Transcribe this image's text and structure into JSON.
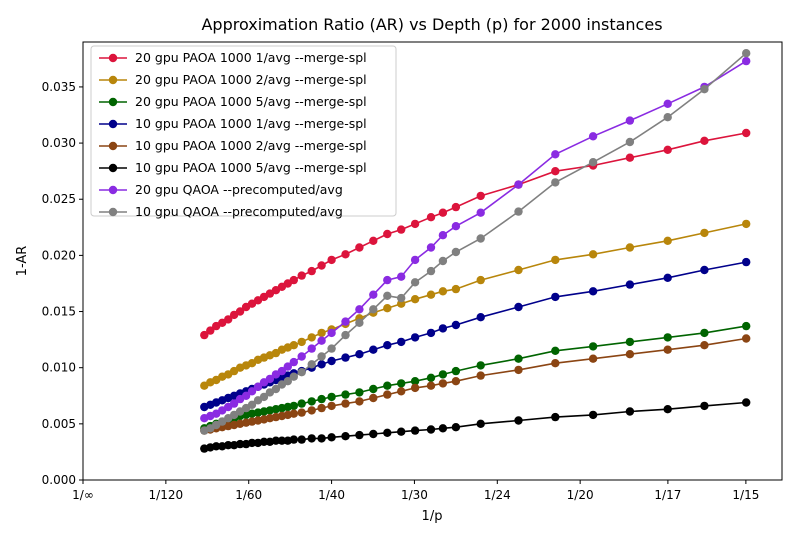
{
  "chart_data": {
    "type": "line",
    "title": "Approximation Ratio (AR) vs Depth (p) for 2000 instances",
    "xlabel": "1/p",
    "ylabel": "1-AR",
    "xlim": [
      0,
      0.0703
    ],
    "ylim": [
      0,
      0.039
    ],
    "x_ticks": [
      {
        "value": 0,
        "label": "1/∞"
      },
      {
        "value": 0.008333,
        "label": "1/120"
      },
      {
        "value": 0.016667,
        "label": "1/60"
      },
      {
        "value": 0.025,
        "label": "1/40"
      },
      {
        "value": 0.033333,
        "label": "1/30"
      },
      {
        "value": 0.041667,
        "label": "1/24"
      },
      {
        "value": 0.05,
        "label": "1/20"
      },
      {
        "value": 0.058824,
        "label": "1/17"
      },
      {
        "value": 0.066667,
        "label": "1/15"
      }
    ],
    "y_ticks": [
      {
        "value": 0.0,
        "label": "0.000"
      },
      {
        "value": 0.005,
        "label": "0.005"
      },
      {
        "value": 0.01,
        "label": "0.010"
      },
      {
        "value": 0.015,
        "label": "0.015"
      },
      {
        "value": 0.02,
        "label": "0.020"
      },
      {
        "value": 0.025,
        "label": "0.025"
      },
      {
        "value": 0.03,
        "label": "0.030"
      },
      {
        "value": 0.035,
        "label": "0.035"
      }
    ],
    "grid": false,
    "legend_position": "top-left",
    "x": [
      0.0122,
      0.0128,
      0.0134,
      0.014,
      0.0146,
      0.0152,
      0.0158,
      0.0164,
      0.017,
      0.0176,
      0.0182,
      0.0188,
      0.0194,
      0.02,
      0.0206,
      0.0212,
      0.022,
      0.023,
      0.024,
      0.025,
      0.0264,
      0.0278,
      0.0292,
      0.0306,
      0.032,
      0.0334,
      0.035,
      0.0362,
      0.0375,
      0.04,
      0.0438,
      0.0475,
      0.0513,
      0.055,
      0.0588,
      0.0625,
      0.0667
    ],
    "series": [
      {
        "name": "20 gpu PAOA 1000 1/avg --merge-spl",
        "color": "#dc143c",
        "values": [
          0.0129,
          0.0133,
          0.0137,
          0.014,
          0.0143,
          0.0147,
          0.015,
          0.0154,
          0.0157,
          0.016,
          0.0163,
          0.0166,
          0.0169,
          0.0172,
          0.0175,
          0.0178,
          0.0182,
          0.0186,
          0.0191,
          0.0196,
          0.0201,
          0.0207,
          0.0213,
          0.0219,
          0.0223,
          0.0228,
          0.0234,
          0.0238,
          0.0243,
          0.0253,
          0.0263,
          0.0275,
          0.028,
          0.0287,
          0.0294,
          0.0302,
          0.0309
        ]
      },
      {
        "name": "20 gpu PAOA 1000 2/avg --merge-spl",
        "color": "#b8860b",
        "values": [
          0.0084,
          0.0087,
          0.0089,
          0.0092,
          0.0094,
          0.0097,
          0.01,
          0.0102,
          0.0104,
          0.0107,
          0.0109,
          0.0111,
          0.0113,
          0.0116,
          0.0118,
          0.012,
          0.0123,
          0.0127,
          0.0131,
          0.0134,
          0.0139,
          0.0144,
          0.0149,
          0.0153,
          0.0157,
          0.0161,
          0.0165,
          0.0168,
          0.017,
          0.0178,
          0.0187,
          0.0196,
          0.0201,
          0.0207,
          0.0213,
          0.022,
          0.0228
        ]
      },
      {
        "name": "20 gpu PAOA 1000 5/avg --merge-spl",
        "color": "#006400",
        "values": [
          0.0046,
          0.0048,
          0.005,
          0.0052,
          0.0054,
          0.0055,
          0.0057,
          0.0058,
          0.0059,
          0.006,
          0.0061,
          0.0062,
          0.0063,
          0.0064,
          0.0065,
          0.0066,
          0.0068,
          0.007,
          0.0072,
          0.0074,
          0.0076,
          0.0078,
          0.0081,
          0.0084,
          0.0086,
          0.0088,
          0.0091,
          0.0094,
          0.0097,
          0.0102,
          0.0108,
          0.0115,
          0.0119,
          0.0123,
          0.0127,
          0.0131,
          0.0137
        ]
      },
      {
        "name": "10 gpu PAOA 1000 1/avg --merge-spl",
        "color": "#00008b",
        "values": [
          0.0065,
          0.0067,
          0.0069,
          0.0071,
          0.0073,
          0.0075,
          0.0077,
          0.0079,
          0.0081,
          0.0083,
          0.0085,
          0.0087,
          0.0089,
          0.0091,
          0.0093,
          0.0095,
          0.0097,
          0.01,
          0.0103,
          0.0106,
          0.0109,
          0.0112,
          0.0116,
          0.012,
          0.0123,
          0.0127,
          0.0131,
          0.0135,
          0.0138,
          0.0145,
          0.0154,
          0.0163,
          0.0168,
          0.0174,
          0.018,
          0.0187,
          0.0194
        ]
      },
      {
        "name": "10 gpu PAOA 1000 2/avg --merge-spl",
        "color": "#8b4513",
        "values": [
          0.0044,
          0.0045,
          0.0046,
          0.0047,
          0.0048,
          0.0049,
          0.005,
          0.0051,
          0.0052,
          0.0053,
          0.0054,
          0.0055,
          0.0056,
          0.0057,
          0.0058,
          0.0059,
          0.006,
          0.0062,
          0.0064,
          0.0066,
          0.0068,
          0.007,
          0.0073,
          0.0076,
          0.0079,
          0.0082,
          0.0084,
          0.0086,
          0.0088,
          0.0093,
          0.0098,
          0.0104,
          0.0108,
          0.0112,
          0.0116,
          0.012,
          0.0126
        ]
      },
      {
        "name": "10 gpu PAOA 1000 5/avg --merge-spl",
        "color": "#000000",
        "values": [
          0.0028,
          0.0029,
          0.003,
          0.003,
          0.0031,
          0.0031,
          0.0032,
          0.0032,
          0.0033,
          0.0033,
          0.0034,
          0.0034,
          0.0035,
          0.0035,
          0.0035,
          0.0036,
          0.0036,
          0.0037,
          0.0037,
          0.0038,
          0.0039,
          0.004,
          0.0041,
          0.0042,
          0.0043,
          0.0044,
          0.0045,
          0.0046,
          0.0047,
          0.005,
          0.0053,
          0.0056,
          0.0058,
          0.0061,
          0.0063,
          0.0066,
          0.0069
        ]
      },
      {
        "name": "20 gpu QAOA --precomputed/avg",
        "color": "#8a2be2",
        "values": [
          0.0055,
          0.0057,
          0.0059,
          0.0062,
          0.0065,
          0.0068,
          0.0072,
          0.0075,
          0.0079,
          0.0083,
          0.0087,
          0.009,
          0.0094,
          0.0097,
          0.0101,
          0.0105,
          0.011,
          0.0117,
          0.0124,
          0.0131,
          0.0141,
          0.0152,
          0.0165,
          0.0178,
          0.0181,
          0.0196,
          0.0207,
          0.0218,
          0.0226,
          0.0238,
          0.0263,
          0.029,
          0.0306,
          0.032,
          0.0335,
          0.035,
          0.0373
        ]
      },
      {
        "name": "10 gpu QAOA --precomputed/avg",
        "color": "#808080",
        "values": [
          0.0044,
          0.0046,
          0.0049,
          0.0052,
          0.0055,
          0.0058,
          0.0061,
          0.0064,
          0.0067,
          0.0071,
          0.0074,
          0.0078,
          0.0081,
          0.0085,
          0.0088,
          0.0092,
          0.0096,
          0.0103,
          0.011,
          0.0117,
          0.0129,
          0.014,
          0.0152,
          0.0164,
          0.0162,
          0.0176,
          0.0186,
          0.0195,
          0.0203,
          0.0215,
          0.0239,
          0.0265,
          0.0283,
          0.0301,
          0.0323,
          0.0348,
          0.038
        ]
      }
    ]
  }
}
